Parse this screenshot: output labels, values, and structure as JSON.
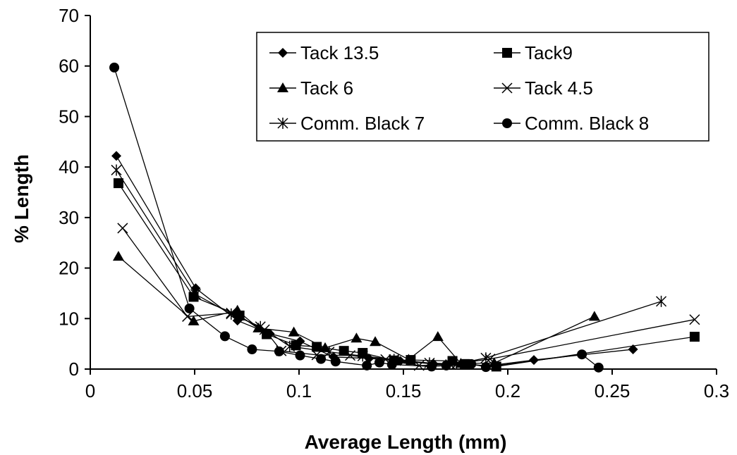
{
  "chart_data": {
    "type": "scatter",
    "title": "",
    "xlabel": "Average Length (mm)",
    "ylabel": "% Length",
    "xlim": [
      0,
      0.3
    ],
    "ylim": [
      0,
      70
    ],
    "xticks": [
      0,
      0.05,
      0.1,
      0.15,
      0.2,
      0.25,
      0.3
    ],
    "yticks": [
      0,
      10,
      20,
      30,
      40,
      50,
      60,
      70
    ],
    "xtick_labels": [
      "0",
      "0.05",
      "0.1",
      "0.15",
      "0.2",
      "0.25",
      "0.3"
    ],
    "ytick_labels": [
      "0",
      "10",
      "20",
      "30",
      "40",
      "50",
      "60",
      "70"
    ],
    "grid": false,
    "legend_position": "top-right",
    "series": [
      {
        "name": "Tack 13.5",
        "marker": "diamond",
        "x": [
          0.0125,
          0.0505,
          0.0705,
          0.086,
          0.1005,
          0.1165,
          0.1335,
          0.1485,
          0.1645,
          0.1815,
          0.1895,
          0.2125,
          0.26
        ],
        "y": [
          42.2,
          16.0,
          9.6,
          7.0,
          5.5,
          2.4,
          2.1,
          1.6,
          1.0,
          0.9,
          0.6,
          1.8,
          3.9
        ]
      },
      {
        "name": "Tack9",
        "marker": "square",
        "x": [
          0.0135,
          0.0495,
          0.0715,
          0.0845,
          0.0985,
          0.1085,
          0.1215,
          0.1305,
          0.1455,
          0.1535,
          0.1735,
          0.1795,
          0.1945,
          0.2895
        ],
        "y": [
          36.8,
          14.3,
          10.6,
          6.9,
          4.7,
          4.4,
          3.6,
          3.2,
          1.7,
          1.8,
          1.6,
          1.0,
          0.5,
          6.4
        ]
      },
      {
        "name": "Tack 6",
        "marker": "triangle",
        "x": [
          0.0135,
          0.0495,
          0.0705,
          0.0805,
          0.0975,
          0.1125,
          0.1275,
          0.1365,
          0.1525,
          0.1665,
          0.1775,
          0.1935,
          0.2415
        ],
        "y": [
          22.3,
          9.5,
          11.6,
          8.1,
          7.3,
          4.2,
          6.1,
          5.4,
          1.9,
          6.4,
          1.1,
          1.2,
          10.4
        ]
      },
      {
        "name": "Tack 4.5",
        "marker": "x",
        "x": [
          0.0155,
          0.0465,
          0.0675,
          0.0835,
          0.0915,
          0.1085,
          0.1245,
          0.1415,
          0.1575,
          0.1725,
          0.1915,
          0.2895
        ],
        "y": [
          27.9,
          10.4,
          11.1,
          7.8,
          3.6,
          2.8,
          2.7,
          1.9,
          0.7,
          0.9,
          2.0,
          9.8
        ]
      },
      {
        "name": "Comm. Black 7",
        "marker": "asterisk",
        "x": [
          0.0125,
          0.0505,
          0.0675,
          0.0815,
          0.0955,
          0.1145,
          0.1305,
          0.1455,
          0.1625,
          0.1755,
          0.1895,
          0.2735
        ],
        "y": [
          39.4,
          14.8,
          10.9,
          8.4,
          4.5,
          3.4,
          2.6,
          1.9,
          1.2,
          1.0,
          2.2,
          13.4
        ]
      },
      {
        "name": "Comm. Black 8",
        "marker": "circle",
        "x": [
          0.0115,
          0.0475,
          0.0645,
          0.0775,
          0.0905,
          0.1005,
          0.1105,
          0.1175,
          0.1325,
          0.1385,
          0.1445,
          0.1635,
          0.1705,
          0.1825,
          0.1895,
          0.2355,
          0.2435
        ],
        "y": [
          59.7,
          12.0,
          6.5,
          3.9,
          3.5,
          2.7,
          2.0,
          1.5,
          0.7,
          1.3,
          0.9,
          0.5,
          0.7,
          1.0,
          0.4,
          2.9,
          0.3
        ]
      }
    ]
  }
}
